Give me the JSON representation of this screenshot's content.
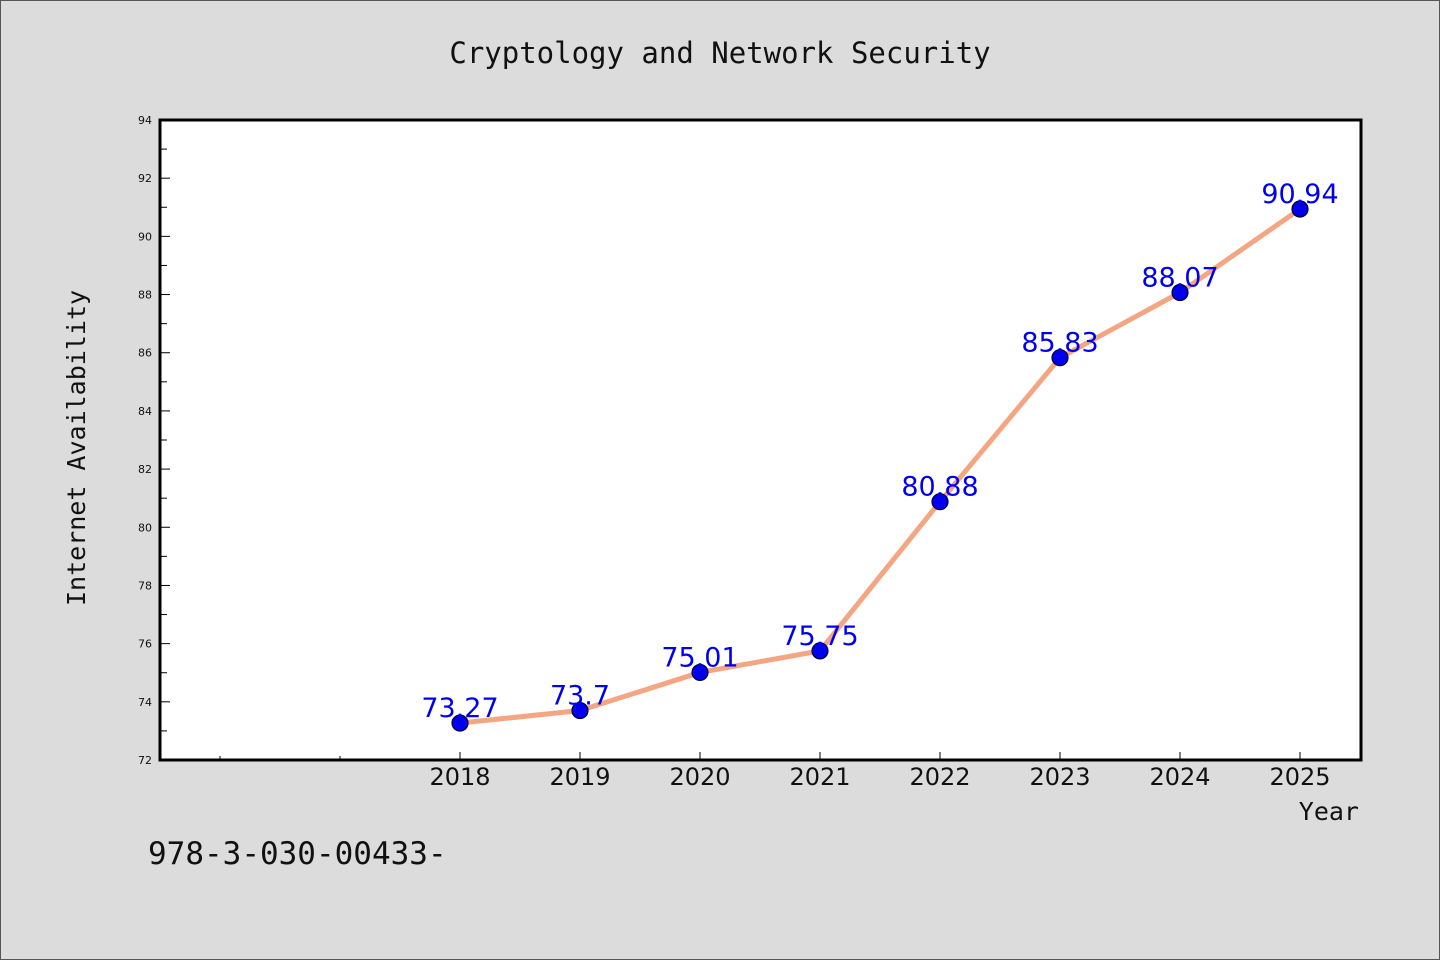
{
  "chart_data": {
    "type": "line",
    "title": "Cryptology and Network Security",
    "xlabel": "Year",
    "ylabel": "Internet Availability",
    "categories": [
      "2018",
      "2019",
      "2020",
      "2021",
      "2022",
      "2023",
      "2024",
      "2025"
    ],
    "series": [
      {
        "values": [
          73.27,
          73.7,
          75.01,
          75.75,
          80.88,
          85.83,
          88.07,
          90.94
        ],
        "labels": [
          "73.27",
          "73.7",
          "75.01",
          "75.75",
          "80.88",
          "85.83",
          "88.07",
          "90.94"
        ],
        "line_color": "#f4a582",
        "marker_color": "#0000ee"
      }
    ],
    "ylim": [
      72,
      94
    ],
    "yticks": [
      "72",
      "74",
      "76",
      "78",
      "80",
      "82",
      "84",
      "86",
      "88",
      "90",
      "92",
      "94"
    ],
    "grid": false,
    "legend": "none"
  },
  "footer": {
    "text": "978-3-030-00433-"
  }
}
